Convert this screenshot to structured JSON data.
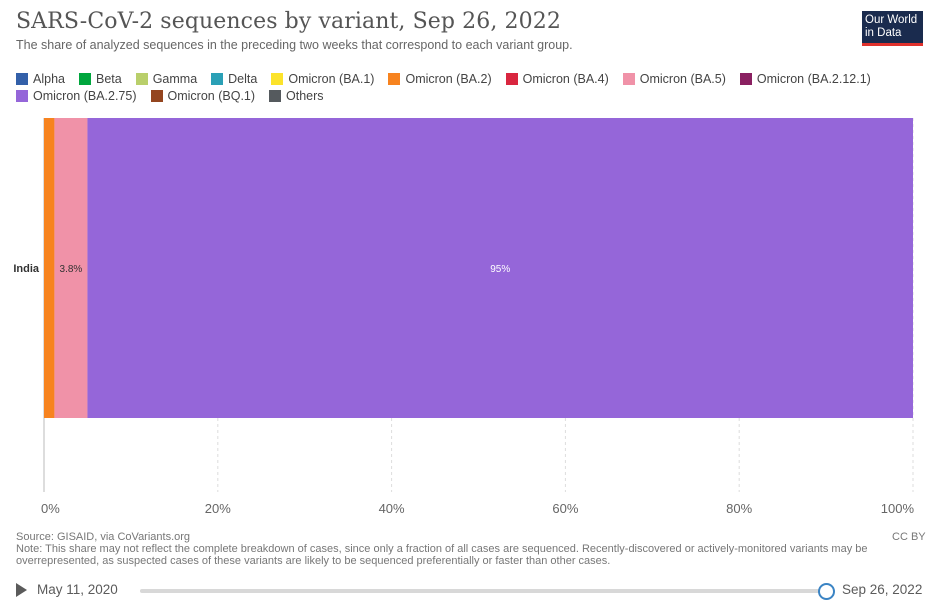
{
  "header": {
    "title": "SARS-CoV-2 sequences by variant, Sep 26, 2022",
    "subtitle": "The share of analyzed sequences in the preceding two weeks that correspond to each variant group.",
    "logo_line1": "Our World",
    "logo_line2": "in Data"
  },
  "legend": [
    {
      "label": "Alpha",
      "color": "#3360a9"
    },
    {
      "label": "Beta",
      "color": "#00a63d"
    },
    {
      "label": "Gamma",
      "color": "#b9cf6b"
    },
    {
      "label": "Delta",
      "color": "#2aa0b6"
    },
    {
      "label": "Omicron (BA.1)",
      "color": "#fce32b"
    },
    {
      "label": "Omicron (BA.2)",
      "color": "#f7831f"
    },
    {
      "label": "Omicron (BA.4)",
      "color": "#d9263f"
    },
    {
      "label": "Omicron (BA.5)",
      "color": "#f092a8"
    },
    {
      "label": "Omicron (BA.2.12.1)",
      "color": "#8a2061"
    },
    {
      "label": "Omicron (BA.2.75)",
      "color": "#9566d9"
    },
    {
      "label": "Omicron (BQ.1)",
      "color": "#94451f"
    },
    {
      "label": "Others",
      "color": "#555a5e"
    }
  ],
  "chart_data": {
    "type": "bar",
    "orientation": "horizontal",
    "stacked": true,
    "categories": [
      "India"
    ],
    "series": [
      {
        "name": "Omicron (BA.2)",
        "values": [
          1.2
        ],
        "color": "#f7831f"
      },
      {
        "name": "Omicron (BA.5)",
        "values": [
          3.8
        ],
        "color": "#f092a8",
        "label": "3.8%"
      },
      {
        "name": "Omicron (BA.2.75)",
        "values": [
          95
        ],
        "color": "#9566d9",
        "label": "95%"
      }
    ],
    "xlim": [
      0,
      100
    ],
    "xticks": [
      "0%",
      "20%",
      "40%",
      "60%",
      "80%",
      "100%"
    ],
    "grid": true
  },
  "footer": {
    "source": "Source: GISAID, via CoVariants.org",
    "note_line1": "Note: This share may not reflect the complete breakdown of cases, since only a fraction of all cases are sequenced. Recently-discovered or actively-monitored variants may be",
    "note_line2": "overrepresented, as suspected cases of these variants are likely to be sequenced preferentially or faster than other cases.",
    "license": "CC BY"
  },
  "timeline": {
    "start": "May 11, 2020",
    "end": "Sep 26, 2022",
    "position": 1.0
  }
}
